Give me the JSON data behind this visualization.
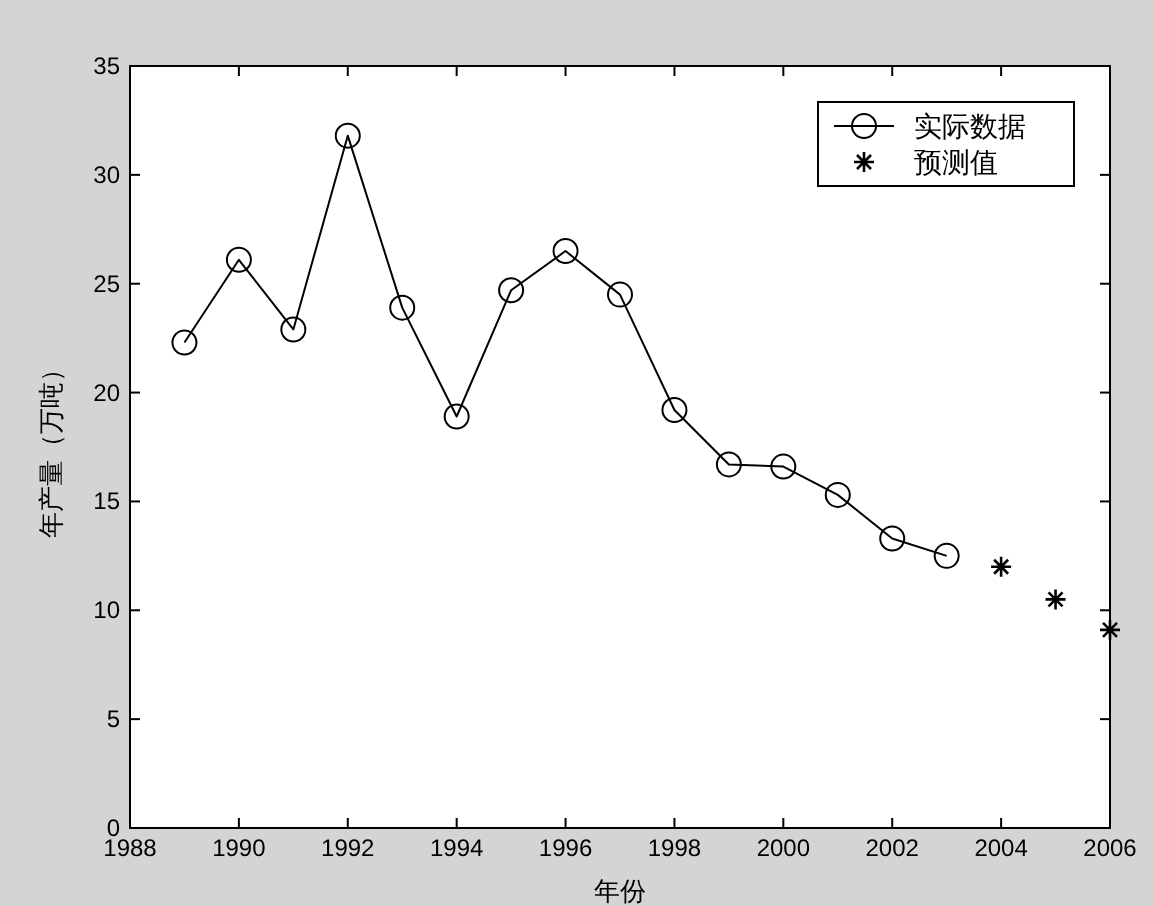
{
  "chart_data": {
    "type": "line",
    "xlabel": "年份",
    "ylabel": "年产量（万吨）",
    "xlim": [
      1988,
      2006
    ],
    "xticks": [
      1988,
      1990,
      1992,
      1994,
      1996,
      1998,
      2000,
      2002,
      2004,
      2006
    ],
    "ylim": [
      0,
      35
    ],
    "yticks": [
      0,
      5,
      10,
      15,
      20,
      25,
      30,
      35
    ],
    "grid": false,
    "legend": "top right",
    "series": [
      {
        "name": "实际数据",
        "color": "#000000",
        "marker": "circle",
        "x": [
          1989,
          1990,
          1991,
          1992,
          1993,
          1994,
          1995,
          1996,
          1997,
          1998,
          1999,
          2000,
          2001,
          2002,
          2003
        ],
        "values": [
          22.3,
          26.1,
          22.9,
          31.8,
          23.9,
          18.9,
          24.7,
          26.5,
          24.5,
          19.2,
          16.7,
          16.6,
          15.3,
          13.3,
          12.5
        ]
      },
      {
        "name": "预测值",
        "type": "scatter",
        "color": "#000000",
        "marker": "cross",
        "x": [
          2004,
          2005,
          2006
        ],
        "values": [
          12.0,
          10.5,
          9.1
        ]
      }
    ]
  }
}
